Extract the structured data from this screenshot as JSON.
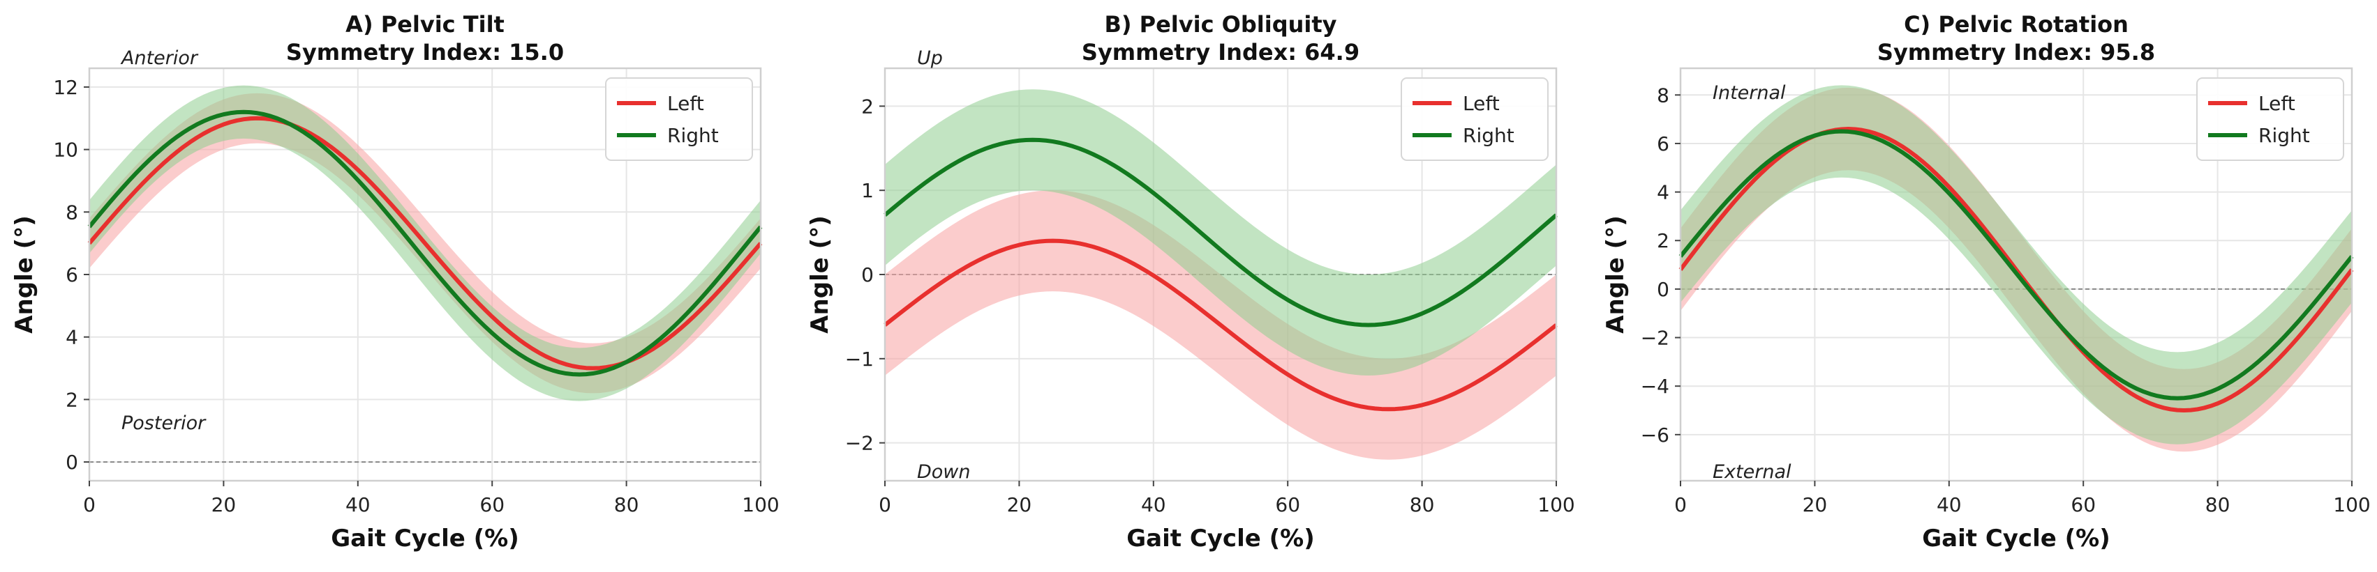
{
  "chart_data": [
    {
      "type": "line",
      "title": "A) Pelvic Tilt",
      "subtitle": "Symmetry Index: 15.0",
      "xlabel": "Gait Cycle (%)",
      "ylabel": "Angle (°)",
      "xlim": [
        0,
        100
      ],
      "ylim": [
        -0.6,
        12.6
      ],
      "xticks": [
        0,
        20,
        40,
        60,
        80,
        100
      ],
      "yticks": [
        0,
        2,
        4,
        6,
        8,
        10,
        12
      ],
      "grid": true,
      "zero_line": true,
      "legend_position": "top-right",
      "annotations": [
        {
          "text": "Anterior",
          "position": "top-left"
        },
        {
          "text": "Posterior",
          "position": "bottom-left"
        }
      ],
      "series": [
        {
          "name": "Left",
          "color": "#e8302e",
          "band_color": "#f8a3a3",
          "mean": 7.0,
          "amplitude": 4.0,
          "phase_shift": 0,
          "band": 0.8
        },
        {
          "name": "Right",
          "color": "#127a1f",
          "band_color": "#8fce8f",
          "mean": 7.0,
          "amplitude": 4.2,
          "phase_shift": -2,
          "band": 0.85
        }
      ]
    },
    {
      "type": "line",
      "title": "B) Pelvic Obliquity",
      "subtitle": "Symmetry Index: 64.9",
      "xlabel": "Gait Cycle (%)",
      "ylabel": "Angle (°)",
      "xlim": [
        0,
        100
      ],
      "ylim": [
        -2.45,
        2.45
      ],
      "xticks": [
        0,
        20,
        40,
        60,
        80,
        100
      ],
      "yticks": [
        -2,
        -1,
        0,
        1,
        2
      ],
      "grid": true,
      "zero_line": true,
      "legend_position": "top-right",
      "annotations": [
        {
          "text": "Up",
          "position": "top-left"
        },
        {
          "text": "Down",
          "position": "bottom-left"
        }
      ],
      "series": [
        {
          "name": "Left",
          "color": "#e8302e",
          "band_color": "#f8a3a3",
          "mean": -0.6,
          "amplitude": 1.0,
          "phase_shift": 0,
          "band": 0.6
        },
        {
          "name": "Right",
          "color": "#127a1f",
          "band_color": "#8fce8f",
          "mean": 0.5,
          "amplitude": 1.1,
          "phase_shift": -3,
          "band": 0.6
        }
      ]
    },
    {
      "type": "line",
      "title": "C) Pelvic Rotation",
      "subtitle": "Symmetry Index: 95.8",
      "xlabel": "Gait Cycle (%)",
      "ylabel": "Angle (°)",
      "xlim": [
        0,
        100
      ],
      "ylim": [
        -7.9,
        9.1
      ],
      "xticks": [
        0,
        20,
        40,
        60,
        80,
        100
      ],
      "yticks": [
        -6,
        -4,
        -2,
        0,
        2,
        4,
        6,
        8
      ],
      "grid": true,
      "zero_line": true,
      "legend_position": "top-right",
      "annotations": [
        {
          "text": "Internal",
          "position": "top-left"
        },
        {
          "text": "External",
          "position": "bottom-left"
        }
      ],
      "series": [
        {
          "name": "Left",
          "color": "#e8302e",
          "band_color": "#f8a3a3",
          "mean": 0.8,
          "amplitude": 5.8,
          "phase_shift": 0,
          "band": 1.7
        },
        {
          "name": "Right",
          "color": "#127a1f",
          "band_color": "#8fce8f",
          "mean": 1.0,
          "amplitude": 5.5,
          "phase_shift": -1,
          "band": 1.9
        }
      ]
    }
  ]
}
